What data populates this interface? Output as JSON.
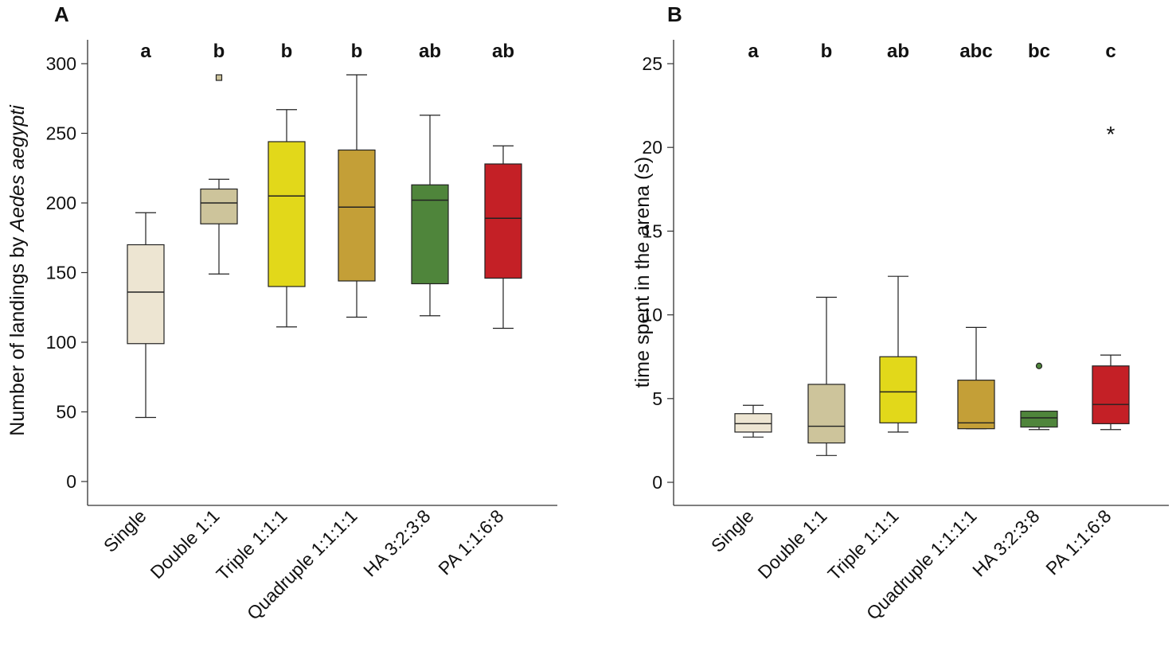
{
  "chart_data": [
    {
      "type": "boxplot",
      "panel": "A",
      "ylabel_prefix": "Number of landings by ",
      "ylabel_italic": "Aedes aegypti",
      "xlabel": "",
      "ylim": [
        0,
        300
      ],
      "yticks": [
        "0",
        "50",
        "100",
        "150",
        "200",
        "250",
        "300"
      ],
      "categories": [
        "Single",
        "Double 1:1",
        "Triple 1:1:1",
        "Quadruple 1:1:1:1",
        "HA 3:2:3:8",
        "PA 1:1:6:8"
      ],
      "significance": [
        "a",
        "b",
        "b",
        "b",
        "ab",
        "ab"
      ],
      "boxes": [
        {
          "min": 46,
          "q1": 99,
          "median": 136,
          "q3": 170,
          "max": 193,
          "outliers": [],
          "outlier_marker": "square"
        },
        {
          "min": 149,
          "q1": 185,
          "median": 200,
          "q3": 210,
          "max": 217,
          "outliers": [
            290
          ],
          "outlier_marker": "square"
        },
        {
          "min": 111,
          "q1": 140,
          "median": 205,
          "q3": 244,
          "max": 267,
          "outliers": [],
          "outlier_marker": "square"
        },
        {
          "min": 118,
          "q1": 144,
          "median": 197,
          "q3": 238,
          "max": 292,
          "outliers": [],
          "outlier_marker": "square"
        },
        {
          "min": 119,
          "q1": 142,
          "median": 202,
          "q3": 213,
          "max": 263,
          "outliers": [],
          "outlier_marker": "square"
        },
        {
          "min": 110,
          "q1": 146,
          "median": 189,
          "q3": 228,
          "max": 241,
          "outliers": [],
          "outlier_marker": "square"
        }
      ]
    },
    {
      "type": "boxplot",
      "panel": "B",
      "ylabel": "time spent in the arena (s)",
      "xlabel": "",
      "ylim": [
        0,
        25
      ],
      "yticks": [
        "0",
        "5",
        "10",
        "15",
        "20",
        "25"
      ],
      "categories": [
        "Single",
        "Double 1:1",
        "Triple 1:1:1",
        "Quadruple 1:1:1:1",
        "HA 3:2:3:8",
        "PA 1:1:6:8"
      ],
      "significance": [
        "a",
        "b",
        "ab",
        "abc",
        "bc",
        "c"
      ],
      "boxes": [
        {
          "min": 2.7,
          "q1": 3.0,
          "median": 3.5,
          "q3": 4.1,
          "max": 4.6,
          "outliers": [],
          "outlier_marker": "circle"
        },
        {
          "min": 1.6,
          "q1": 2.35,
          "median": 3.35,
          "q3": 5.85,
          "max": 11.05,
          "outliers": [],
          "outlier_marker": "circle"
        },
        {
          "min": 3.0,
          "q1": 3.55,
          "median": 5.4,
          "q3": 7.5,
          "max": 12.3,
          "outliers": [],
          "outlier_marker": "circle"
        },
        {
          "min": 3.2,
          "q1": 3.2,
          "median": 3.55,
          "q3": 6.1,
          "max": 9.25,
          "outliers": [],
          "outlier_marker": "circle"
        },
        {
          "min": 3.15,
          "q1": 3.3,
          "median": 3.85,
          "q3": 4.25,
          "max": 4.25,
          "outliers": [
            6.95
          ],
          "outlier_marker": "circle"
        },
        {
          "min": 3.15,
          "q1": 3.5,
          "median": 4.65,
          "q3": 6.95,
          "max": 7.6,
          "outliers": [
            20.95
          ],
          "outlier_marker": "star"
        }
      ]
    }
  ],
  "colors": {
    "box_fills": [
      "#ede5d2",
      "#cdc49b",
      "#e2d81a",
      "#c49f37",
      "#4f853b",
      "#c42026"
    ],
    "axis": "#333333",
    "text": "#111111"
  }
}
